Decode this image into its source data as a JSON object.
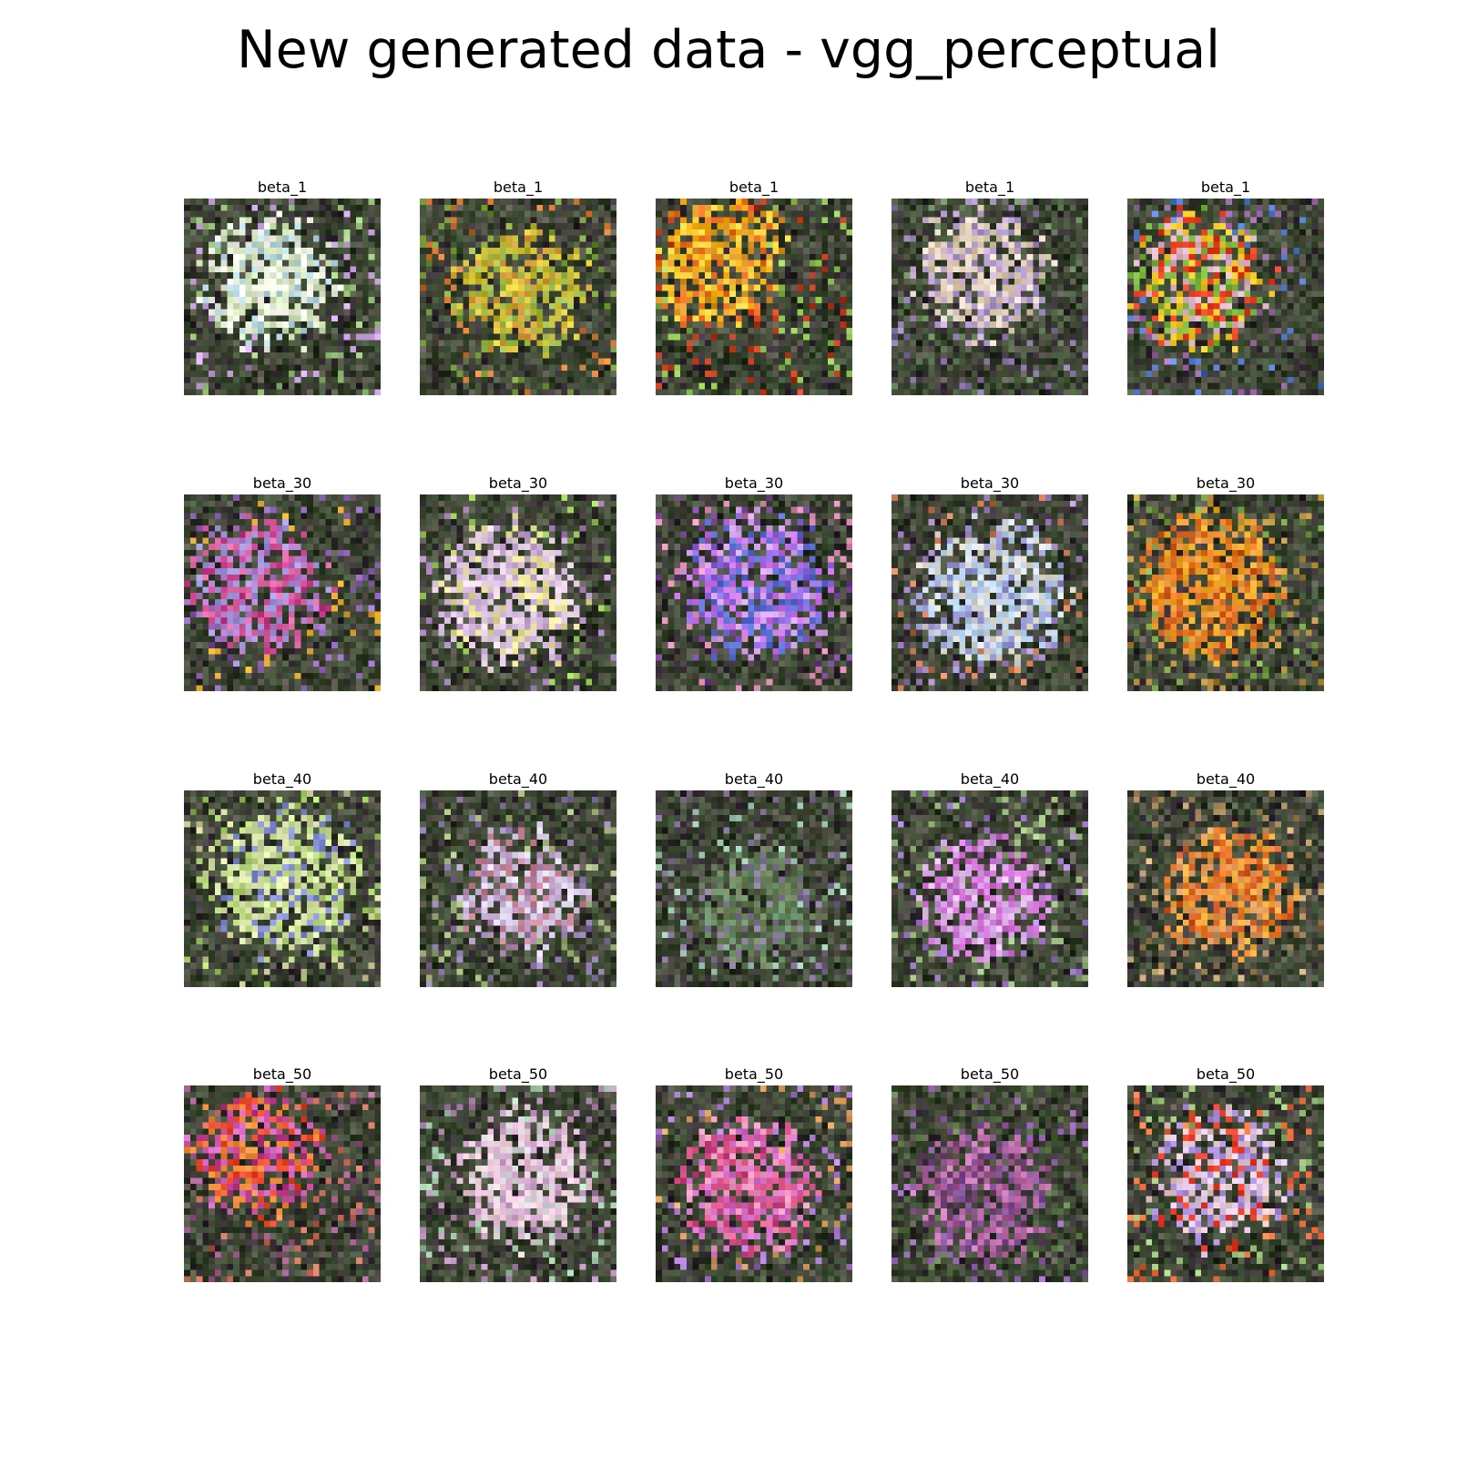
{
  "figure": {
    "title": "New generated data - vgg_perceptual"
  },
  "rows": [
    {
      "label": "beta_1",
      "panels": [
        {
          "title": "beta_1",
          "theme": "pale-green-white blob"
        },
        {
          "title": "beta_1",
          "theme": "yellow-green flowers"
        },
        {
          "title": "beta_1",
          "theme": "orange-yellow flower"
        },
        {
          "title": "beta_1",
          "theme": "pale lilac on dark"
        },
        {
          "title": "beta_1",
          "theme": "mixed red-yellow-green"
        }
      ]
    },
    {
      "label": "beta_30",
      "panels": [
        {
          "title": "beta_30",
          "theme": "magenta-lilac"
        },
        {
          "title": "beta_30",
          "theme": "pale pink-white"
        },
        {
          "title": "beta_30",
          "theme": "blue-violet"
        },
        {
          "title": "beta_30",
          "theme": "pale blue-white"
        },
        {
          "title": "beta_30",
          "theme": "orange on green"
        }
      ]
    },
    {
      "label": "beta_40",
      "panels": [
        {
          "title": "beta_40",
          "theme": "pale yellow-green"
        },
        {
          "title": "beta_40",
          "theme": "lilac-white"
        },
        {
          "title": "beta_40",
          "theme": "dark green noise"
        },
        {
          "title": "beta_40",
          "theme": "lilac-magenta"
        },
        {
          "title": "beta_40",
          "theme": "orange flower"
        }
      ]
    },
    {
      "label": "beta_50",
      "panels": [
        {
          "title": "beta_50",
          "theme": "red-orange-magenta"
        },
        {
          "title": "beta_50",
          "theme": "pale pink"
        },
        {
          "title": "beta_50",
          "theme": "pink-magenta"
        },
        {
          "title": "beta_50",
          "theme": "dark purple-pink"
        },
        {
          "title": "beta_50",
          "theme": "multicolor"
        }
      ]
    }
  ]
}
